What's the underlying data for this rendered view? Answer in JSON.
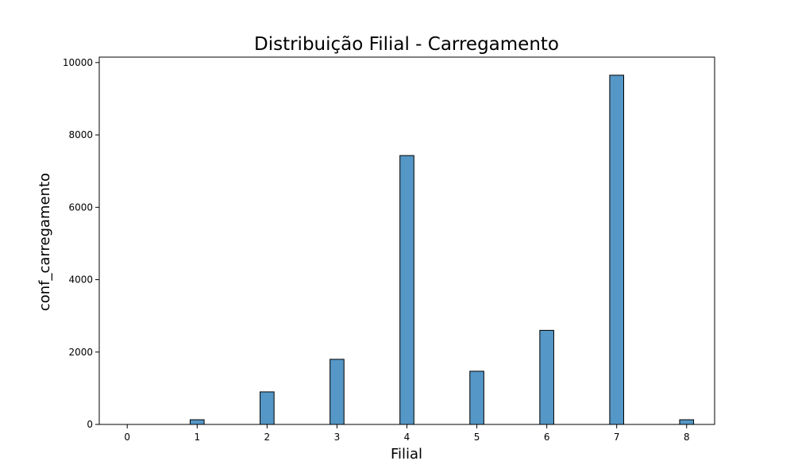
{
  "chart_data": {
    "type": "bar",
    "title": "Distribuição Filial - Carregamento",
    "xlabel": "Filial",
    "ylabel": "conf_carregamento",
    "x": [
      1,
      2,
      3,
      4,
      5,
      6,
      7,
      8
    ],
    "values": [
      130,
      900,
      1800,
      7430,
      1470,
      2600,
      9650,
      130
    ],
    "xticks": [
      0,
      1,
      2,
      3,
      4,
      5,
      6,
      7,
      8
    ],
    "yticks": [
      0,
      2000,
      4000,
      6000,
      8000,
      10000
    ],
    "xlim": [
      -0.4,
      8.4
    ],
    "ylim": [
      0,
      10150
    ],
    "bar_color": "#5597c6",
    "edge_color": "#000000",
    "grid": false,
    "legend": "none"
  }
}
